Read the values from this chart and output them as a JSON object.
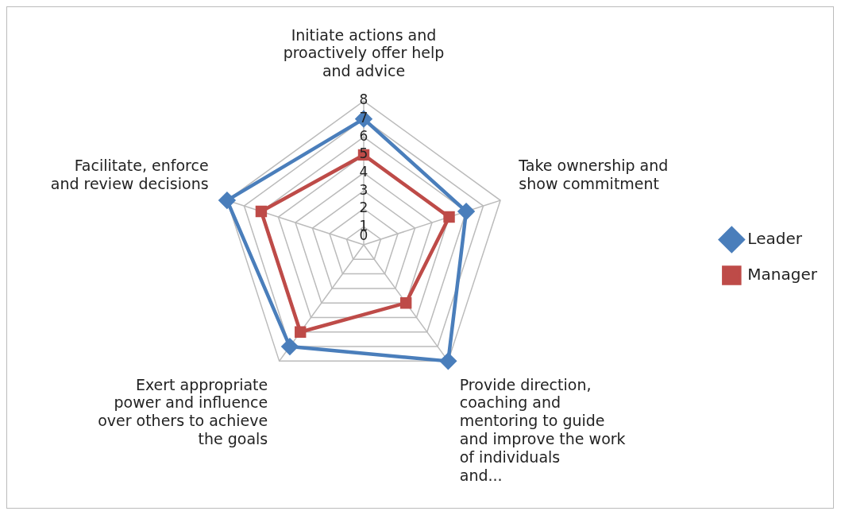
{
  "chart_data": {
    "type": "radar",
    "categories": [
      "Initiate actions and proactively offer help and advice",
      "Take ownership and show commitment",
      "Provide direction, coaching and mentoring to guide and improve the work of individuals and...",
      "Exert appropriate power and influence over others to achieve the goals",
      "Facilitate, enforce and review decisions"
    ],
    "series": [
      {
        "name": "Leader",
        "color": "#4a7ebb",
        "marker": "diamond",
        "values": [
          7,
          6,
          8,
          7,
          8
        ]
      },
      {
        "name": "Manager",
        "color": "#be4b48",
        "marker": "square",
        "values": [
          5,
          5,
          4,
          6,
          6
        ]
      }
    ],
    "ylim": [
      0,
      8
    ],
    "yticks": [
      0,
      1,
      2,
      3,
      4,
      5,
      6,
      7,
      8
    ],
    "grid": true,
    "legend": "right"
  }
}
